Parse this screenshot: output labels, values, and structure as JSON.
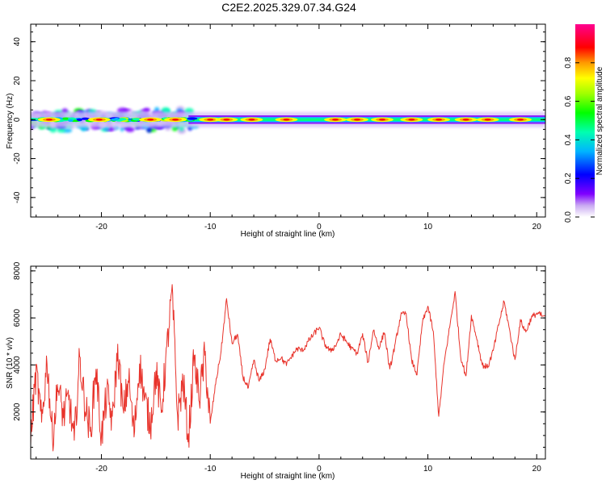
{
  "title": "C2E2.2025.329.07.34.G24",
  "chart_data": [
    {
      "type": "heatmap",
      "xlabel": "Height of straight line (km)",
      "ylabel": "Frequency (Hz)",
      "xlim": [
        -26.5,
        20.8
      ],
      "ylim": [
        -50,
        49
      ],
      "xticks": [
        "-20",
        "-10",
        "0",
        "10",
        "20"
      ],
      "xtick_values": [
        -20,
        -10,
        0,
        10,
        20
      ],
      "yticks": [
        "40",
        "20",
        "0",
        "-20",
        "-40"
      ],
      "ytick_values": [
        40,
        20,
        0,
        -20,
        -40
      ],
      "colorbar": {
        "label": "Normalized spectral amplitude",
        "range": [
          0,
          1
        ],
        "ticks": [
          "0.0",
          "0.2",
          "0.4",
          "0.6",
          "0.8"
        ],
        "tick_values": [
          0,
          0.2,
          0.4,
          0.6,
          0.8
        ]
      },
      "band": {
        "center_frequency_hz": 0,
        "description_segments": [
          {
            "x_from": -26.5,
            "x_to": -11.5,
            "pattern": "scattered, broad spread up to about ±6 Hz"
          },
          {
            "x_from": -11.5,
            "x_to": 20.8,
            "pattern": "narrow continuous band near 0 Hz"
          }
        ],
        "hot_spots_x_km": [
          -24.8,
          -20.2,
          -15.5,
          -13.2,
          -10.0,
          -8.5,
          -6.2,
          -3.0,
          1.5,
          3.5,
          5.8,
          8.5,
          11.0,
          13.5,
          15.5,
          18.5
        ]
      }
    },
    {
      "type": "line",
      "xlabel": "Height of straight line (km)",
      "ylabel": "SNR (10 * v/v)",
      "xlim": [
        -26.5,
        20.8
      ],
      "ylim": [
        0,
        8200
      ],
      "xticks": [
        "-20",
        "-10",
        "0",
        "10",
        "20"
      ],
      "xtick_values": [
        -20,
        -10,
        0,
        10,
        20
      ],
      "yticks": [
        "8000",
        "6000",
        "4000",
        "2000"
      ],
      "ytick_values": [
        8000,
        6000,
        4000,
        2000
      ],
      "series": [
        {
          "name": "SNR",
          "color": "#e8332b",
          "x": [
            -26.5,
            -26.0,
            -25.5,
            -25.0,
            -24.5,
            -24.0,
            -23.5,
            -23.0,
            -22.5,
            -22.0,
            -21.5,
            -21.0,
            -20.5,
            -20.0,
            -19.5,
            -19.0,
            -18.5,
            -18.0,
            -17.5,
            -17.0,
            -16.5,
            -16.0,
            -15.5,
            -15.0,
            -14.5,
            -14.0,
            -13.5,
            -13.0,
            -12.5,
            -12.0,
            -11.5,
            -11.0,
            -10.5,
            -10.0,
            -9.5,
            -9.0,
            -8.5,
            -8.0,
            -7.5,
            -7.0,
            -6.5,
            -6.0,
            -5.5,
            -5.0,
            -4.5,
            -4.0,
            -3.5,
            -3.0,
            -2.5,
            -2.0,
            -1.5,
            -1.0,
            -0.5,
            0.0,
            0.5,
            1.0,
            1.5,
            2.0,
            2.5,
            3.0,
            3.5,
            4.0,
            4.5,
            5.0,
            5.5,
            6.0,
            6.5,
            7.0,
            7.5,
            8.0,
            8.5,
            9.0,
            9.5,
            10.0,
            10.5,
            11.0,
            11.5,
            12.0,
            12.5,
            13.0,
            13.5,
            14.0,
            14.5,
            15.0,
            15.5,
            16.0,
            16.5,
            17.0,
            17.5,
            18.0,
            18.5,
            19.0,
            19.5,
            20.0,
            20.5
          ],
          "y": [
            800,
            3800,
            1500,
            4200,
            900,
            3100,
            1800,
            2600,
            700,
            4300,
            2200,
            1200,
            3900,
            900,
            2800,
            1600,
            4700,
            1900,
            3400,
            1000,
            4100,
            2500,
            1400,
            3700,
            2000,
            4600,
            7200,
            1800,
            3300,
            900,
            4200,
            2600,
            4400,
            1500,
            3200,
            4600,
            6800,
            4900,
            5300,
            3500,
            3000,
            4200,
            3300,
            3800,
            5100,
            4200,
            4300,
            4000,
            4400,
            4700,
            4600,
            5000,
            5300,
            5600,
            4900,
            4600,
            4800,
            5300,
            5000,
            4700,
            4500,
            5300,
            4100,
            5500,
            4700,
            5400,
            3800,
            4900,
            6100,
            6200,
            4200,
            3600,
            5800,
            6500,
            5400,
            1800,
            4100,
            5600,
            7100,
            4400,
            3500,
            6100,
            5100,
            4000,
            3900,
            4600,
            5700,
            6700,
            5500,
            4200,
            5900,
            5400,
            6000,
            6200,
            6100
          ]
        }
      ]
    }
  ]
}
